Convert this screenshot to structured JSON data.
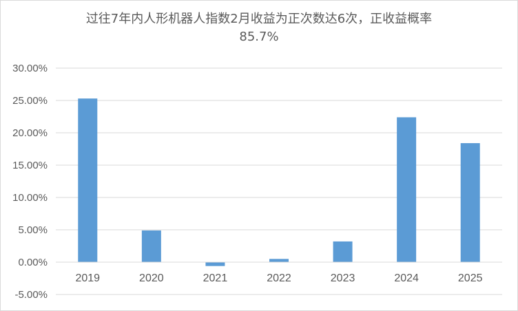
{
  "chart_data": {
    "type": "bar",
    "title": "过往7年内人形机器人指数2月收益为正次数达6次，正收益概率",
    "subtitle": "85.7%",
    "categories": [
      "2019",
      "2020",
      "2021",
      "2022",
      "2023",
      "2024",
      "2025"
    ],
    "values": [
      25.3,
      4.9,
      -0.6,
      0.5,
      3.2,
      22.4,
      18.4
    ],
    "value_unit": "%",
    "ylim": [
      -5,
      30
    ],
    "yticks": [
      "30.00%",
      "25.00%",
      "20.00%",
      "15.00%",
      "10.00%",
      "5.00%",
      "0.00%",
      "-5.00%"
    ],
    "ytick_values": [
      30,
      25,
      20,
      15,
      10,
      5,
      0,
      -5
    ],
    "xlabel": "",
    "ylabel": "",
    "grid": true,
    "legend": "none",
    "bar_color": "#5b9bd5",
    "grid_color": "#d9d9d9"
  }
}
